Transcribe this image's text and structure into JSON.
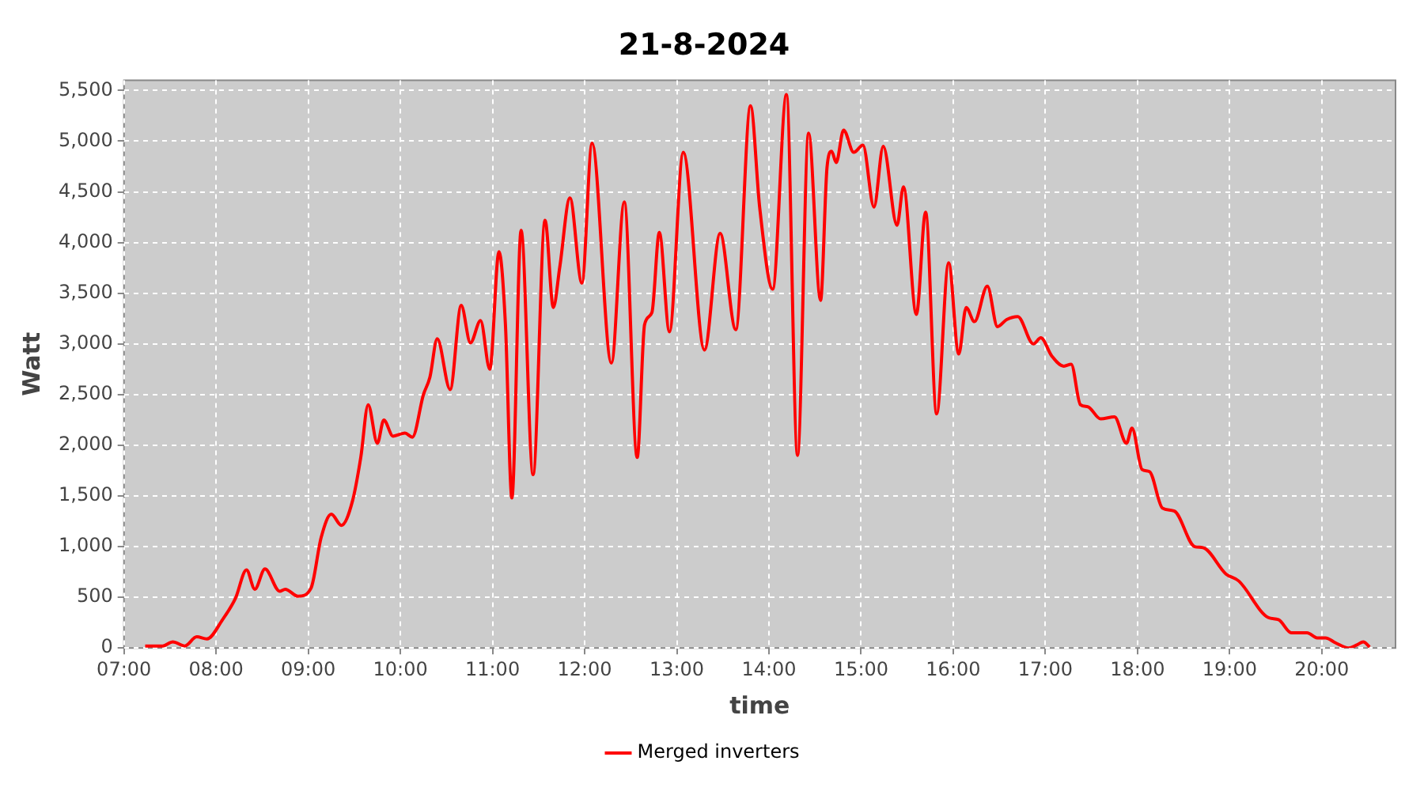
{
  "chart_data": {
    "type": "line",
    "title": "21-8-2024",
    "xlabel": "time",
    "ylabel": "Watt",
    "xlim": [
      7,
      20.8
    ],
    "xticks": [
      {
        "value": 7,
        "label": "07:00"
      },
      {
        "value": 8,
        "label": "08:00"
      },
      {
        "value": 9,
        "label": "09:00"
      },
      {
        "value": 10,
        "label": "10:00"
      },
      {
        "value": 11,
        "label": "11:00"
      },
      {
        "value": 12,
        "label": "12:00"
      },
      {
        "value": 13,
        "label": "13:00"
      },
      {
        "value": 14,
        "label": "14:00"
      },
      {
        "value": 15,
        "label": "15:00"
      },
      {
        "value": 16,
        "label": "16:00"
      },
      {
        "value": 17,
        "label": "17:00"
      },
      {
        "value": 18,
        "label": "18:00"
      },
      {
        "value": 19,
        "label": "19:00"
      },
      {
        "value": 20,
        "label": "20:00"
      }
    ],
    "ylim": [
      0,
      5600
    ],
    "yticks": [
      0,
      500,
      {
        "value": 1000,
        "label": "1,000"
      },
      {
        "value": 1500,
        "label": "1,500"
      },
      {
        "value": 2000,
        "label": "2,000"
      },
      {
        "value": 2500,
        "label": "2,500"
      },
      {
        "value": 3000,
        "label": "3,000"
      },
      {
        "value": 3500,
        "label": "3,500"
      },
      {
        "value": 4000,
        "label": "4,000"
      },
      {
        "value": 4500,
        "label": "4,500"
      },
      {
        "value": 5000,
        "label": "5,000"
      },
      {
        "value": 5500,
        "label": "5,500"
      }
    ],
    "grid": true,
    "legend": "bottom",
    "marker": "none",
    "line_style": "solid",
    "x": [
      7.23,
      7.42,
      7.53,
      7.66,
      7.79,
      7.9,
      8.07,
      8.21,
      8.33,
      8.42,
      8.53,
      8.69,
      8.75,
      8.89,
      9.03,
      9.14,
      9.25,
      9.36,
      9.48,
      9.57,
      9.65,
      9.75,
      9.82,
      9.92,
      10.05,
      10.13,
      10.25,
      10.32,
      10.4,
      10.54,
      10.66,
      10.76,
      10.87,
      10.97,
      11.07,
      11.14,
      11.21,
      11.31,
      11.44,
      11.57,
      11.66,
      11.73,
      11.84,
      11.97,
      12.08,
      12.29,
      12.43,
      12.57,
      12.65,
      12.73,
      12.81,
      12.92,
      13.07,
      13.3,
      13.47,
      13.64,
      13.8,
      13.9,
      14.04,
      14.19,
      14.31,
      14.43,
      14.56,
      14.63,
      14.68,
      14.73,
      14.81,
      14.92,
      15.02,
      15.14,
      15.24,
      15.39,
      15.46,
      15.6,
      15.7,
      15.82,
      15.95,
      16.06,
      16.14,
      16.23,
      16.37,
      16.48,
      16.58,
      16.7,
      16.87,
      16.95,
      17.07,
      17.2,
      17.28,
      17.38,
      17.46,
      17.6,
      17.75,
      17.88,
      17.94,
      18.05,
      18.13,
      18.27,
      18.4,
      18.62,
      18.71,
      18.96,
      19.1,
      19.42,
      19.53,
      19.67,
      19.84,
      19.95,
      20.04,
      20.15,
      20.29,
      20.38,
      20.45,
      20.52
    ],
    "series": [
      {
        "name": "Merged inverters",
        "color": "#ff0000",
        "values": [
          20,
          20,
          60,
          20,
          110,
          90,
          280,
          490,
          770,
          580,
          780,
          560,
          580,
          510,
          590,
          1090,
          1320,
          1210,
          1450,
          1880,
          2400,
          2020,
          2250,
          2090,
          2120,
          2080,
          2500,
          2670,
          3050,
          2550,
          3380,
          3010,
          3230,
          2750,
          3910,
          3190,
          1480,
          4120,
          1710,
          4220,
          3360,
          3760,
          4440,
          3600,
          4980,
          2810,
          4400,
          1880,
          3190,
          3310,
          4100,
          3120,
          4890,
          2940,
          4090,
          3140,
          5350,
          4340,
          3540,
          5460,
          1900,
          5080,
          3430,
          4740,
          4900,
          4790,
          5110,
          4890,
          4960,
          4350,
          4950,
          4170,
          4550,
          3290,
          4300,
          2310,
          3800,
          2900,
          3360,
          3220,
          3570,
          3170,
          3240,
          3270,
          3000,
          3060,
          2880,
          2780,
          2800,
          2400,
          2380,
          2260,
          2280,
          2020,
          2170,
          1760,
          1740,
          1380,
          1350,
          1000,
          990,
          730,
          660,
          300,
          280,
          150,
          150,
          100,
          100,
          50,
          0,
          30,
          60,
          10
        ]
      }
    ]
  }
}
